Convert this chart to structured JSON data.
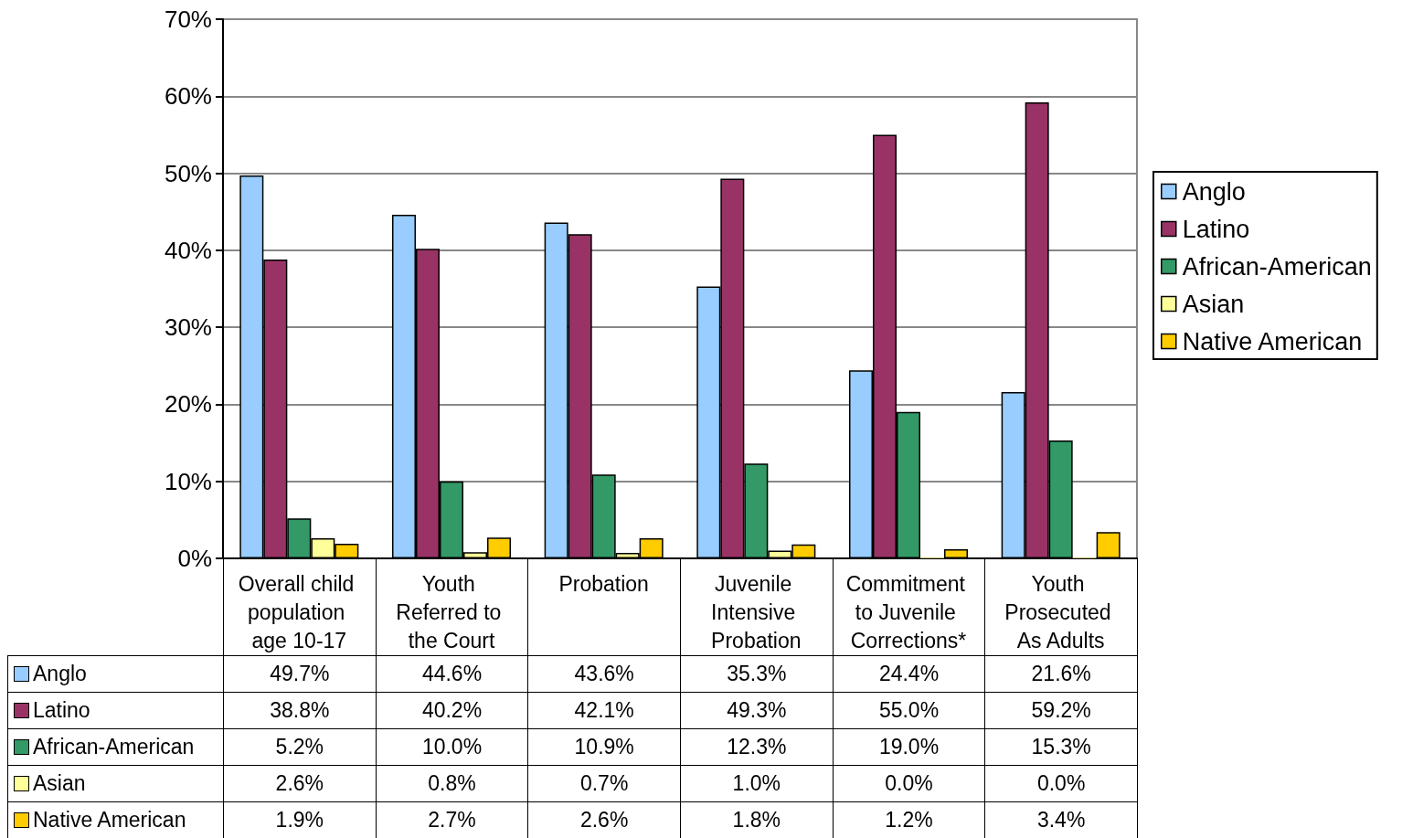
{
  "chart_data": {
    "type": "bar",
    "categories": [
      "Overall child population age 10-17",
      "Youth Referred to the Court",
      "Probation",
      "Juvenile Intensive Probation",
      "Commitment to Juvenile Corrections*",
      "Youth Prosecuted As Adults"
    ],
    "series": [
      {
        "name": "Anglo",
        "color": "#99ccff",
        "values": [
          49.7,
          44.6,
          43.6,
          35.3,
          24.4,
          21.6
        ],
        "value_labels": [
          "49.7%",
          "44.6%",
          "43.6%",
          "35.3%",
          "24.4%",
          "21.6%"
        ]
      },
      {
        "name": "Latino",
        "color": "#993366",
        "values": [
          38.8,
          40.2,
          42.1,
          49.3,
          55.0,
          59.2
        ],
        "value_labels": [
          "38.8%",
          "40.2%",
          "42.1%",
          "49.3%",
          "55.0%",
          "59.2%"
        ]
      },
      {
        "name": "African-American",
        "color": "#339966",
        "values": [
          5.2,
          10.0,
          10.9,
          12.3,
          19.0,
          15.3
        ],
        "value_labels": [
          "5.2%",
          "10.0%",
          "10.9%",
          "12.3%",
          "19.0%",
          "15.3%"
        ]
      },
      {
        "name": "Asian",
        "color": "#ffff99",
        "values": [
          2.6,
          0.8,
          0.7,
          1.0,
          0.0,
          0.0
        ],
        "value_labels": [
          "2.6%",
          "0.8%",
          "0.7%",
          "1.0%",
          "0.0%",
          "0.0%"
        ]
      },
      {
        "name": "Native American",
        "color": "#ffcc00",
        "values": [
          1.9,
          2.7,
          2.6,
          1.8,
          1.2,
          3.4
        ],
        "value_labels": [
          "1.9%",
          "2.7%",
          "2.6%",
          "1.8%",
          "1.2%",
          "3.4%"
        ]
      }
    ],
    "ylim": [
      0,
      70
    ],
    "yticks": [
      {
        "value": 0,
        "label": "0%"
      },
      {
        "value": 10,
        "label": "10%"
      },
      {
        "value": 20,
        "label": "20%"
      },
      {
        "value": 30,
        "label": "30%"
      },
      {
        "value": 40,
        "label": "40%"
      },
      {
        "value": 50,
        "label": "50%"
      },
      {
        "value": 60,
        "label": "60%"
      },
      {
        "value": 70,
        "label": "70%"
      }
    ],
    "grid": "y",
    "legend": "right"
  }
}
